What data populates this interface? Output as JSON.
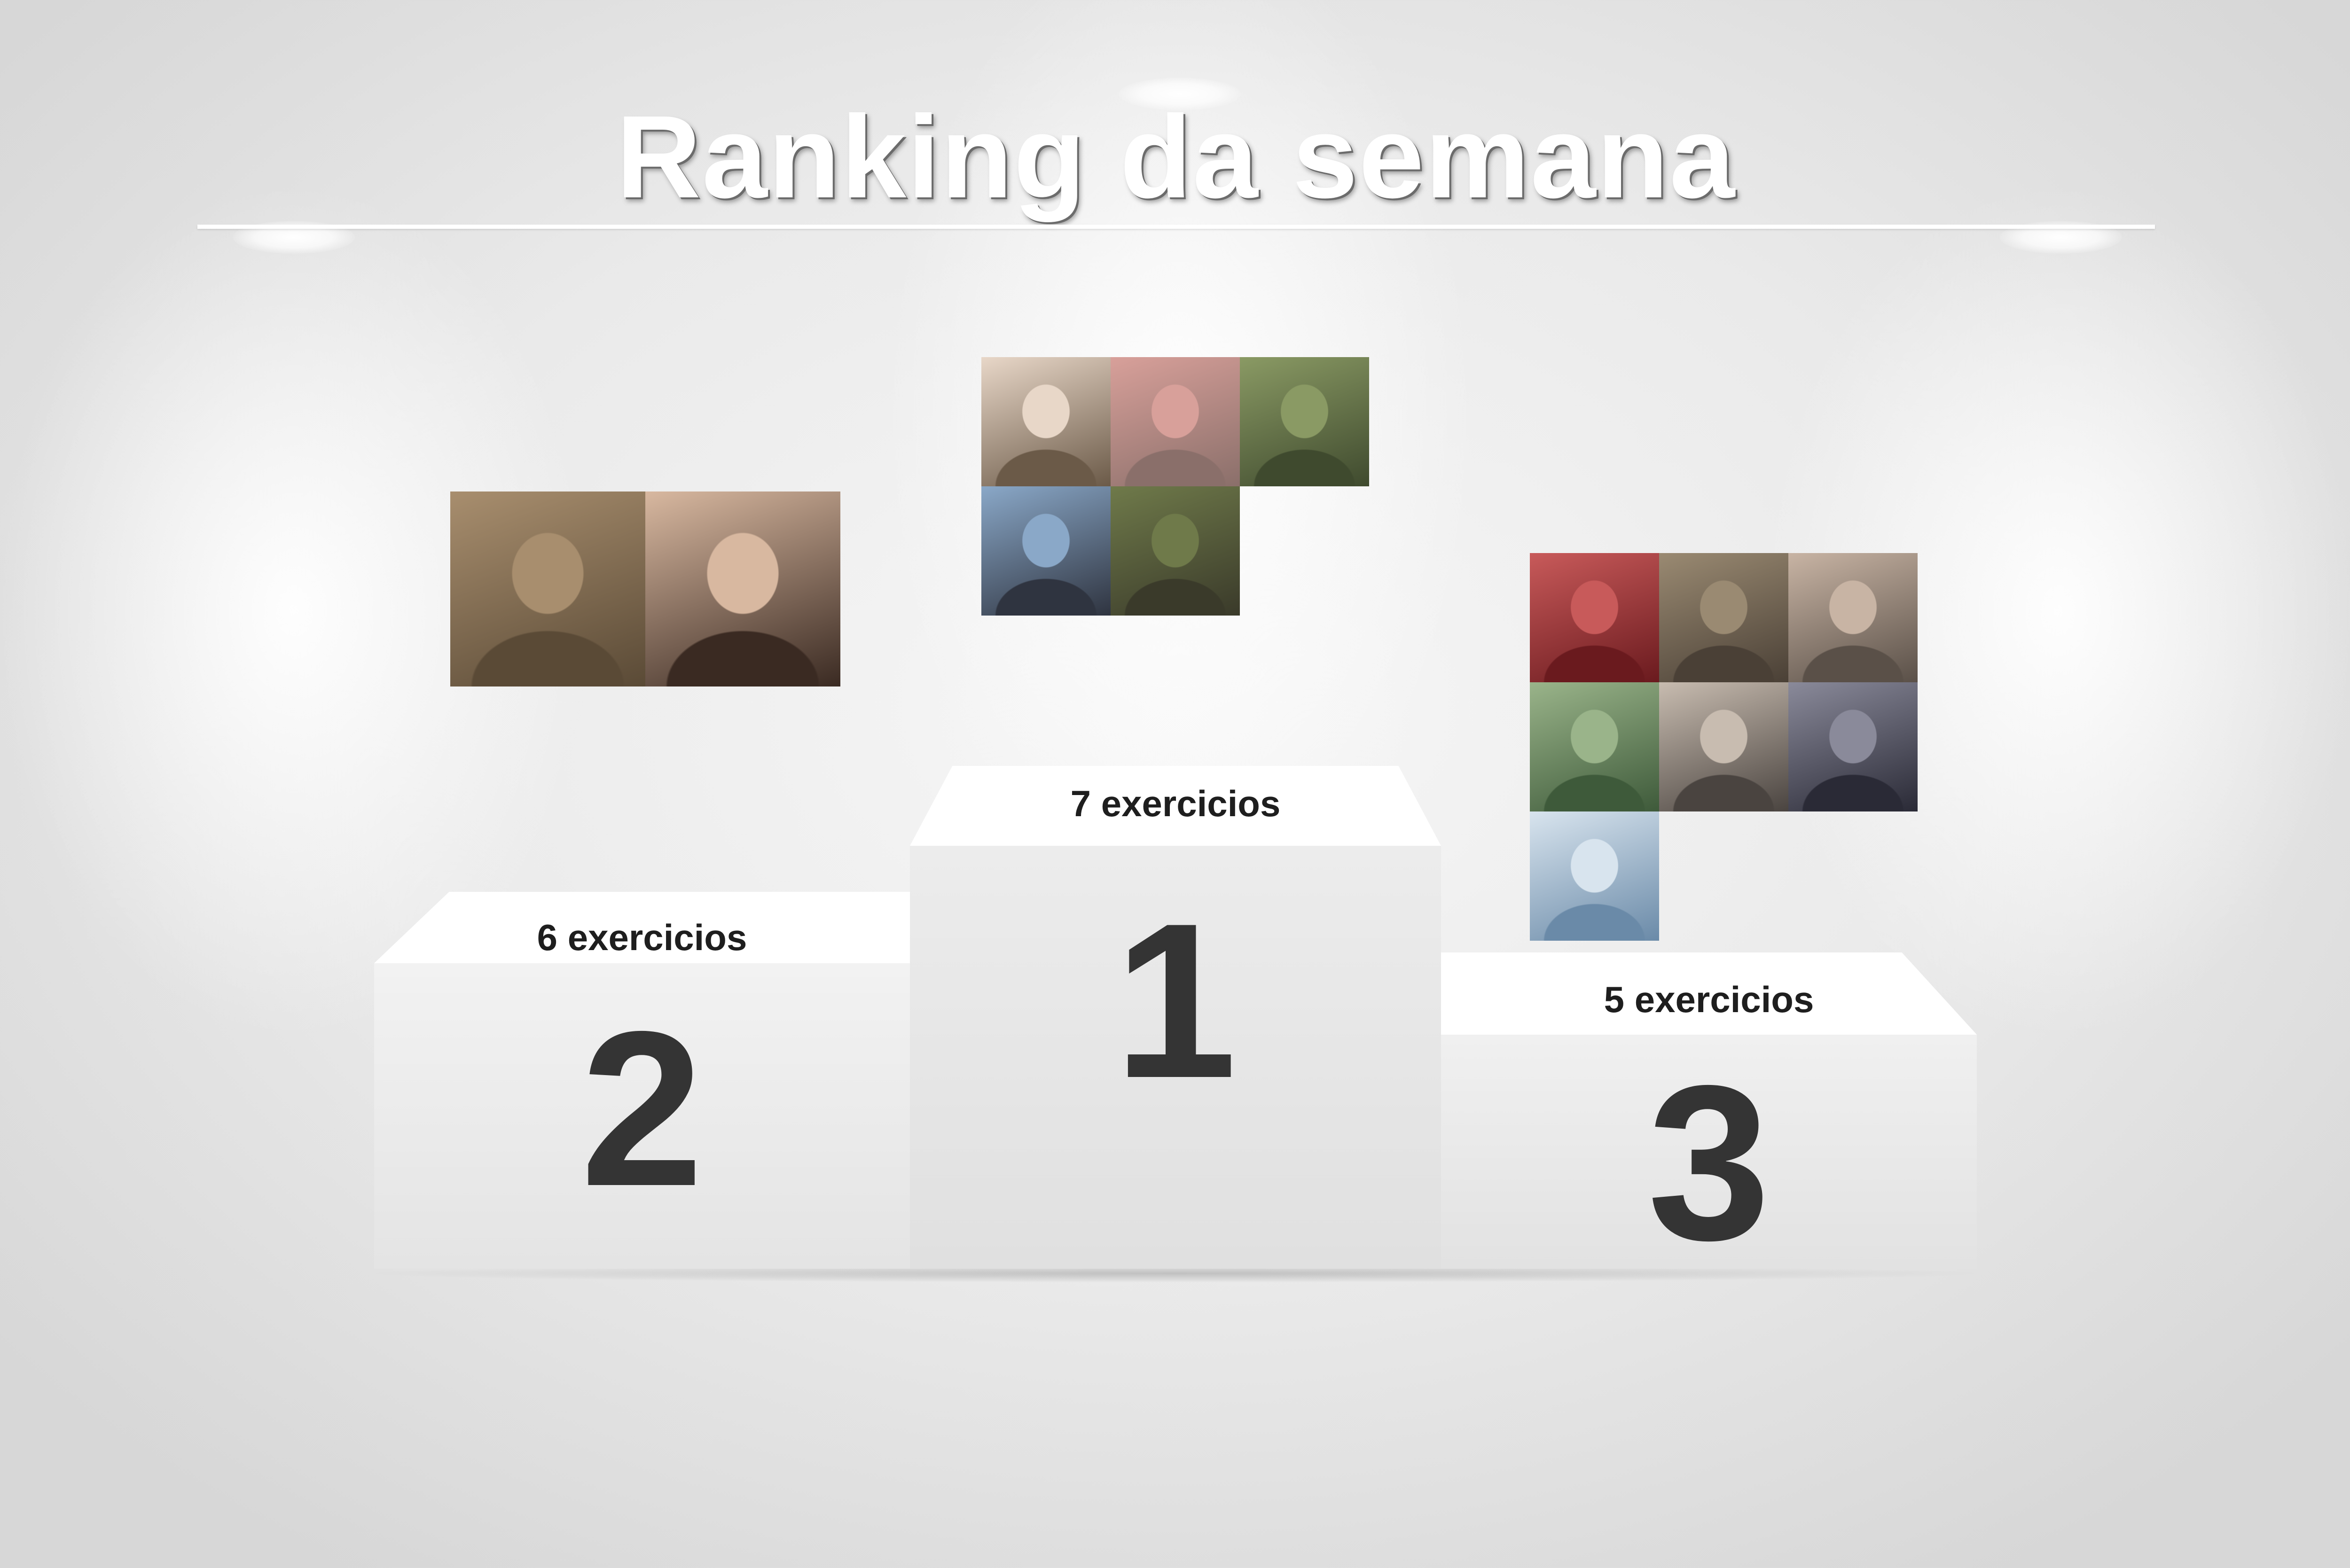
{
  "title": "Ranking da semana",
  "colors": {
    "title_text": "#ffffff",
    "rank_number": "#343434",
    "count_text": "#1e1e1e",
    "podium": "#e8e8e8"
  },
  "podium": {
    "first": {
      "rank": "1",
      "count_label": "7 exercicios",
      "photos": [
        {
          "icon": "person-photo-icon",
          "tone": [
            "#6b5a48",
            "#e8d7c8"
          ]
        },
        {
          "icon": "person-photo-icon",
          "tone": [
            "#8a6f6a",
            "#d8a09a"
          ]
        },
        {
          "icon": "person-photo-icon",
          "tone": [
            "#3f4a2e",
            "#8a9a64"
          ]
        },
        {
          "icon": "person-photo-icon",
          "tone": [
            "#2f3440",
            "#8aa8c8"
          ]
        },
        {
          "icon": "person-photo-icon",
          "tone": [
            "#3a3a2a",
            "#6f7a4a"
          ]
        }
      ]
    },
    "second": {
      "rank": "2",
      "count_label": "6 exercicios",
      "photos": [
        {
          "icon": "person-photo-icon",
          "tone": [
            "#5a4a36",
            "#a88e6e"
          ]
        },
        {
          "icon": "person-photo-icon",
          "tone": [
            "#3a2a22",
            "#d8b8a0"
          ]
        }
      ]
    },
    "third": {
      "rank": "3",
      "count_label": "5 exercicios",
      "photos": [
        {
          "icon": "person-photo-icon",
          "tone": [
            "#6a1a1e",
            "#c85a5a"
          ]
        },
        {
          "icon": "person-photo-icon",
          "tone": [
            "#4a4036",
            "#9a8a72"
          ]
        },
        {
          "icon": "person-photo-icon",
          "tone": [
            "#5a5048",
            "#c8b4a4"
          ]
        },
        {
          "icon": "person-photo-icon",
          "tone": [
            "#3e5a3a",
            "#9ab48a"
          ]
        },
        {
          "icon": "person-photo-icon",
          "tone": [
            "#4a4440",
            "#c8bcb0"
          ]
        },
        {
          "icon": "person-photo-icon",
          "tone": [
            "#2a2a36",
            "#8a8a9a"
          ]
        },
        {
          "icon": "person-photo-icon",
          "tone": [
            "#6a8aa8",
            "#d8e4ee"
          ]
        }
      ]
    }
  }
}
